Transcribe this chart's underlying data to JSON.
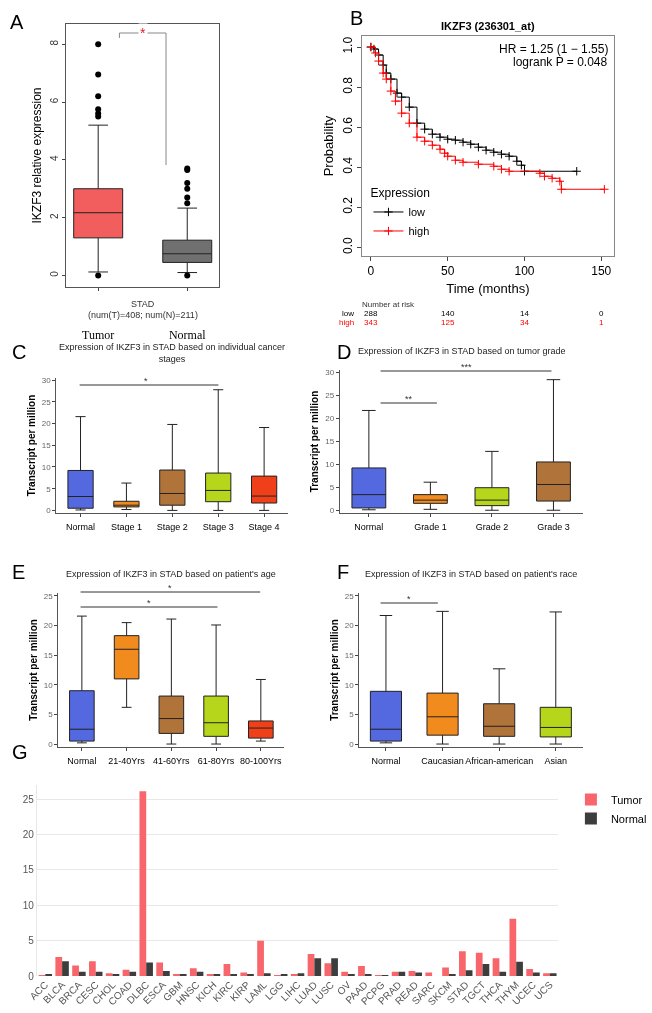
{
  "chart_data": [
    {
      "type": "box",
      "categories": [
        "Tumor",
        "Normal"
      ],
      "colors": [
        "#f25e5e",
        "#707070"
      ],
      "boxes": [
        {
          "low": 0.12,
          "q1": 1.3,
          "median": 2.17,
          "q3": 3.0,
          "high": 5.2
        },
        {
          "low": 0.1,
          "q1": 0.45,
          "median": 0.75,
          "q3": 1.22,
          "high": 2.33
        }
      ],
      "series": [
        {
          "type": "scatter",
          "color": "#000000",
          "marker": "circle",
          "x": [
            "Tumor",
            "Tumor",
            "Tumor",
            "Tumor",
            "Tumor",
            "Tumor",
            "Tumor",
            "Normal",
            "Normal",
            "Normal",
            "Normal",
            "Normal",
            "Normal",
            "Normal"
          ],
          "values": [
            0,
            5.5,
            5.6,
            5.75,
            6.2,
            6.95,
            8.0,
            0,
            2.5,
            2.7,
            3.0,
            3.2,
            3.65,
            3.7
          ]
        }
      ],
      "xlabel": "STAD",
      "ylabel": "IKZF3 relative expression",
      "ylim": [
        -0.4,
        8.7
      ],
      "yticks": [
        0,
        2,
        4,
        6,
        8
      ],
      "annotations": [
        "A",
        "(num(T)=408; num(N)=211)",
        "*"
      ]
    },
    {
      "type": "step",
      "title": "IKZF3 (236301_at)",
      "xlabel": "Time (months)",
      "ylabel": "Probability",
      "legend_title": "Expression",
      "legend": "bottom left",
      "marker": "cross",
      "xlim": [
        -5.7,
        158
      ],
      "xticks": [
        0,
        50,
        100,
        150
      ],
      "ylim": [
        -0.043,
        1.055
      ],
      "yticks": [
        {
          "value": 0,
          "label": "0.0"
        },
        {
          "value": 0.2,
          "label": "0.2"
        },
        {
          "value": 0.4,
          "label": "0.4"
        },
        {
          "value": 0.6,
          "label": "0.6"
        },
        {
          "value": 0.8,
          "label": "0.8"
        },
        {
          "value": 1,
          "label": "1.0"
        }
      ],
      "series": [
        {
          "name": "low",
          "color": "#000000",
          "x": [
            0,
            2,
            5,
            8,
            10,
            13,
            17,
            20,
            25,
            30,
            35,
            40,
            45,
            50,
            55,
            60,
            65,
            70,
            75,
            80,
            85,
            90,
            95,
            98,
            100,
            134
          ],
          "values": [
            1.0,
            0.99,
            0.96,
            0.91,
            0.87,
            0.84,
            0.77,
            0.75,
            0.7,
            0.62,
            0.59,
            0.565,
            0.55,
            0.54,
            0.535,
            0.525,
            0.515,
            0.5,
            0.485,
            0.475,
            0.465,
            0.455,
            0.43,
            0.41,
            0.38,
            0.38
          ]
        },
        {
          "name": "high",
          "color": "#ff0000",
          "x": [
            0,
            3,
            5,
            8,
            10,
            13,
            16,
            20,
            25,
            30,
            35,
            40,
            45,
            48,
            50,
            55,
            60,
            70,
            80,
            85,
            90,
            110,
            113,
            118,
            123,
            124,
            152
          ],
          "values": [
            1.0,
            0.97,
            0.93,
            0.87,
            0.84,
            0.78,
            0.73,
            0.67,
            0.62,
            0.55,
            0.53,
            0.51,
            0.49,
            0.47,
            0.455,
            0.435,
            0.425,
            0.415,
            0.405,
            0.39,
            0.38,
            0.37,
            0.355,
            0.345,
            0.33,
            0.29,
            0.29
          ]
        }
      ],
      "annotations": [
        "B",
        "HR = 1.25 (1 − 1.55)",
        "logrank P = 0.048",
        "Number at risk",
        "low",
        "288",
        "140",
        "14",
        "0",
        "high",
        "343",
        "125",
        "34",
        "1"
      ]
    },
    {
      "type": "box",
      "title": "Expression of IKZF3 in STAD based on individual cancer stages",
      "categories": [
        "Normal",
        "Stage 1",
        "Stage 2",
        "Stage 3",
        "Stage 4"
      ],
      "colors": [
        "#5468e0",
        "#f28b1e",
        "#b0733a",
        "#b5d61a",
        "#f0401a"
      ],
      "boxes": [
        {
          "low": 0.1,
          "q1": 0.5,
          "median": 3.2,
          "q3": 9.2,
          "high": 21.6
        },
        {
          "low": 0.2,
          "q1": 0.8,
          "median": 1.2,
          "q3": 2.1,
          "high": 6.3
        },
        {
          "low": 0,
          "q1": 1.2,
          "median": 3.9,
          "q3": 9.3,
          "high": 19.8
        },
        {
          "low": 0,
          "q1": 2,
          "median": 4.6,
          "q3": 8.6,
          "high": 27.8
        },
        {
          "low": 0,
          "q1": 1.7,
          "median": 3.3,
          "q3": 7.9,
          "high": 19.1
        }
      ],
      "ylabel": "Transcript per million",
      "ylim": [
        -0.6,
        30.5
      ],
      "yticks": [
        0,
        5,
        10,
        15,
        20,
        25,
        30
      ],
      "annotations": [
        "C",
        "*"
      ]
    },
    {
      "type": "box",
      "title": "Expression of IKZF3 in STAD based on tumor grade",
      "categories": [
        "Normal",
        "Grade 1",
        "Grade 2",
        "Grade 3"
      ],
      "colors": [
        "#5468e0",
        "#f28b1e",
        "#b5d61a",
        "#b0733a"
      ],
      "boxes": [
        {
          "low": 0.1,
          "q1": 0.5,
          "median": 3.4,
          "q3": 9.2,
          "high": 21.7
        },
        {
          "low": 0.2,
          "q1": 1.5,
          "median": 2.2,
          "q3": 3.4,
          "high": 6.1
        },
        {
          "low": 0,
          "q1": 1.0,
          "median": 2.2,
          "q3": 4.9,
          "high": 12.8
        },
        {
          "low": 0,
          "q1": 2,
          "median": 5.6,
          "q3": 10.5,
          "high": 28.4
        }
      ],
      "ylabel": "Transcript per million",
      "ylim": [
        -0.6,
        30.5
      ],
      "yticks": [
        0,
        5,
        10,
        15,
        20,
        25,
        30
      ],
      "annotations": [
        "D",
        "**",
        "***"
      ]
    },
    {
      "type": "box",
      "title": "Expression of IKZF3 in STAD based on patient's age",
      "categories": [
        "Normal",
        "21-40Yrs",
        "41-60Yrs",
        "61-80Yrs",
        "80-100Yrs"
      ],
      "colors": [
        "#5468e0",
        "#f28b1e",
        "#b0733a",
        "#b5d61a",
        "#f0401a"
      ],
      "boxes": [
        {
          "low": 0.2,
          "q1": 0.5,
          "median": 2.5,
          "q3": 9.0,
          "high": 21.6
        },
        {
          "low": 6.2,
          "q1": 11.0,
          "median": 16.0,
          "q3": 18.3,
          "high": 20.5
        },
        {
          "low": 0,
          "q1": 1.8,
          "median": 4.3,
          "q3": 8.1,
          "high": 21.1
        },
        {
          "low": 0,
          "q1": 1.3,
          "median": 3.6,
          "q3": 8.1,
          "high": 20.1
        },
        {
          "low": 0.5,
          "q1": 1.0,
          "median": 2.7,
          "q3": 3.9,
          "high": 10.9
        }
      ],
      "ylabel": "Transcript per million",
      "ylim": [
        -0.5,
        25.5
      ],
      "yticks": [
        0,
        5,
        10,
        15,
        20,
        25
      ],
      "annotations": [
        "E",
        "*",
        "*"
      ]
    },
    {
      "type": "box",
      "title": "Expression of IKZF3 in STAD based on patient's race",
      "categories": [
        "Normal",
        "Caucasian",
        "African-american",
        "Asian"
      ],
      "colors": [
        "#5468e0",
        "#f28b1e",
        "#b0733a",
        "#b5d61a"
      ],
      "boxes": [
        {
          "low": 0.2,
          "q1": 0.5,
          "median": 2.5,
          "q3": 8.9,
          "high": 21.7
        },
        {
          "low": 0,
          "q1": 1.5,
          "median": 4.6,
          "q3": 8.6,
          "high": 22.4
        },
        {
          "low": 0,
          "q1": 1.3,
          "median": 3.0,
          "q3": 6.8,
          "high": 12.7
        },
        {
          "low": 0,
          "q1": 1.2,
          "median": 2.8,
          "q3": 6.2,
          "high": 22.3
        }
      ],
      "ylabel": "Transcript per million",
      "ylim": [
        -0.5,
        25.5
      ],
      "yticks": [
        0,
        5,
        10,
        15,
        20,
        25
      ],
      "annotations": [
        "F",
        "*"
      ]
    },
    {
      "type": "bar",
      "categories": [
        "ACC",
        "BLCA",
        "BRCA",
        "CESC",
        "CHOL",
        "COAD",
        "DLBC",
        "ESCA",
        "GBM",
        "HNSC",
        "KICH",
        "KIRC",
        "KIRP",
        "LAML",
        "LGG",
        "LIHC",
        "LUAD",
        "LUSC",
        "OV",
        "PAAD",
        "PCPG",
        "PRAD",
        "READ",
        "SARC",
        "SKCM",
        "STAD",
        "TGCT",
        "THCA",
        "THYM",
        "UCEC",
        "UCS"
      ],
      "series": [
        {
          "name": "Tumor",
          "color": "#f8656a",
          "values": [
            0.1,
            2.7,
            1.5,
            2.1,
            0.4,
            0.9,
            26.1,
            1.9,
            0.2,
            1.1,
            0.2,
            1.7,
            0.5,
            5.0,
            0.1,
            0.3,
            3.1,
            1.8,
            0.6,
            1.4,
            0.1,
            0.6,
            0.7,
            0.5,
            1.2,
            3.5,
            3.3,
            2.5,
            8.1,
            1.0,
            0.4
          ]
        },
        {
          "name": "Normal",
          "color": "#3d3d3d",
          "values": [
            0.2,
            2.1,
            0.6,
            0.6,
            0.3,
            0.6,
            1.9,
            0.7,
            0.2,
            0.6,
            0.2,
            0.3,
            0.3,
            0.4,
            0.2,
            0.4,
            2.5,
            2.5,
            0.3,
            0.3,
            0.1,
            0.6,
            0.5,
            0,
            0.3,
            0.8,
            1.7,
            0.6,
            2.0,
            0.5,
            0.4
          ]
        }
      ],
      "ylim": [
        0,
        27
      ],
      "yticks": [
        0,
        5,
        10,
        15,
        20,
        25
      ],
      "grid": "y",
      "legend": "top right",
      "annotations": [
        "G"
      ]
    }
  ]
}
